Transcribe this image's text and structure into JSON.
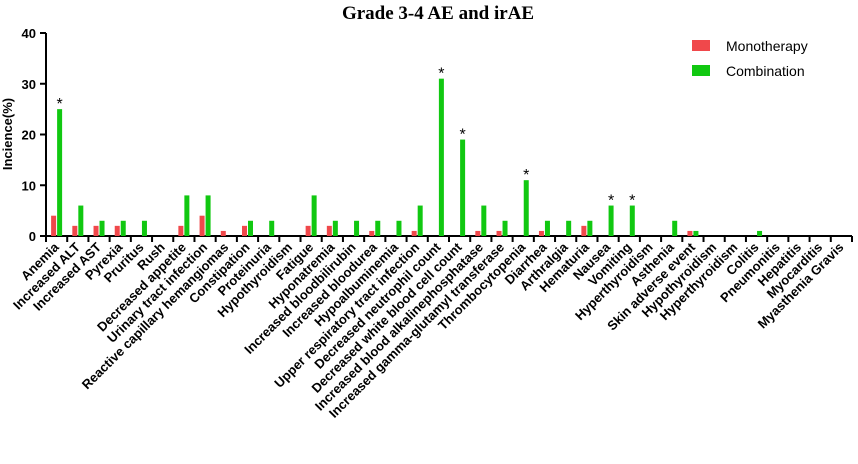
{
  "chart_data": {
    "type": "bar",
    "title": "Grade 3-4 AE and irAE",
    "xlabel": "",
    "ylabel": "Incience(%)",
    "ylim": [
      0,
      40
    ],
    "yticks": [
      0,
      10,
      20,
      30,
      40
    ],
    "grid": false,
    "legend_position": "top-right",
    "categories": [
      "Anemia",
      "Increased ALT",
      "Increased AST",
      "Pyrexia",
      "Pruritus",
      "Rush",
      "Decreased appetite",
      "Urinary tract infection",
      "Reactive capillary hemangiomas",
      "Constipation",
      "Proteinuria",
      "Hypothyroidism",
      "Fatigue",
      "Hyponatremia",
      "Increased bloodbilirubin",
      "Increased bloodurea",
      "Hypoalbuminemia",
      "Upper respiratory tract infection",
      "Decreased neutrophil count",
      "Decreased white blood cell count",
      "Increased blood alkalinephosphatase",
      "Increased gamma-glutamyl transferase",
      "Thrombocytopenia",
      "Diarrhea",
      "Arthralgia",
      "Hematuria",
      "Nausea",
      "Vomiting",
      "Hyperthyroidism",
      "Asthenia",
      "Skin adverse event",
      "Hypothyroidism",
      "Hyperthyroidism",
      "Colitis",
      "Pneumonitis",
      "Hepatitis",
      "Myocarditis",
      "Myasthenia Gravis"
    ],
    "series": [
      {
        "name": "Monotherapy",
        "color": "#f0484b",
        "values": [
          4,
          2,
          2,
          2,
          0,
          0,
          2,
          4,
          1,
          2,
          0,
          0,
          2,
          2,
          0,
          1,
          0,
          1,
          0,
          0,
          1,
          1,
          0,
          1,
          0,
          2,
          0,
          0,
          0,
          0,
          1,
          0,
          0,
          0,
          0,
          0,
          0,
          0
        ]
      },
      {
        "name": "Combination",
        "color": "#11c811",
        "values": [
          25,
          6,
          3,
          3,
          3,
          0,
          8,
          8,
          0,
          3,
          3,
          0,
          8,
          3,
          3,
          3,
          3,
          6,
          31,
          19,
          6,
          3,
          11,
          3,
          3,
          3,
          6,
          6,
          0,
          3,
          1,
          0,
          0,
          1,
          0,
          0,
          0,
          0
        ]
      }
    ],
    "significant_marker": "*",
    "significant_indices": [
      0,
      18,
      19,
      22,
      26,
      27
    ]
  }
}
